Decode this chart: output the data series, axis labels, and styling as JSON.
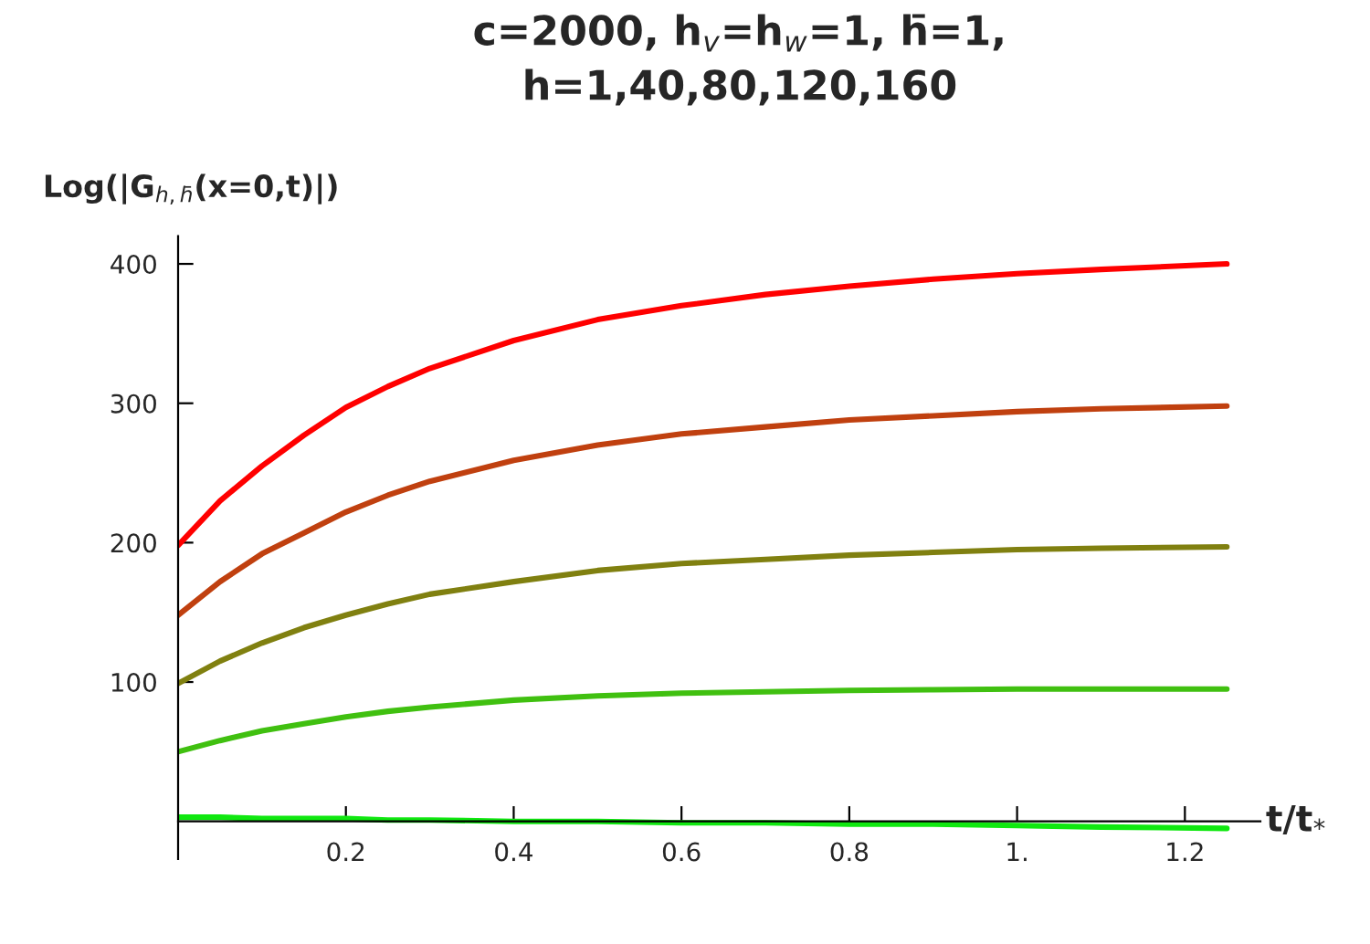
{
  "chart_data": {
    "type": "line",
    "title": "c=2000, h$_{v}$=h$_{w}$=1, h̄=1,\nh=1,40,80,120,160",
    "xlabel": "t/t$_{*}$",
    "ylabel": "Log(|G$_{h,h̄}$(x=0,t)|)",
    "x": [
      0,
      0.05,
      0.1,
      0.15,
      0.2,
      0.25,
      0.3,
      0.4,
      0.5,
      0.6,
      0.7,
      0.8,
      0.9,
      1.0,
      1.1,
      1.25
    ],
    "series": [
      {
        "color": "#ff0000",
        "values": [
          198,
          230,
          255,
          277,
          297,
          312,
          325,
          345,
          360,
          370,
          378,
          384,
          389,
          393,
          396,
          400
        ]
      },
      {
        "color": "#c0400f",
        "values": [
          148,
          172,
          192,
          207,
          222,
          234,
          244,
          259,
          270,
          278,
          283,
          288,
          291,
          294,
          296,
          298
        ]
      },
      {
        "color": "#808010",
        "values": [
          99,
          115,
          128,
          139,
          148,
          156,
          163,
          172,
          180,
          185,
          188,
          191,
          193,
          195,
          196,
          197
        ]
      },
      {
        "color": "#40c010",
        "values": [
          50,
          58,
          65,
          70,
          75,
          79,
          82,
          87,
          90,
          92,
          93,
          94,
          94.5,
          95,
          95,
          95
        ]
      },
      {
        "color": "#10e810",
        "values": [
          3,
          3,
          2,
          2,
          2,
          1,
          1,
          0,
          0,
          -1,
          -1,
          -2,
          -2,
          -3,
          -4,
          -5
        ]
      }
    ],
    "xlim": [
      0,
      1.29
    ],
    "ylim": [
      -27,
      420
    ],
    "xticks": [
      0.2,
      0.4,
      0.6,
      0.8,
      {
        "value": 1.0,
        "label": "1."
      },
      1.2
    ],
    "yticks": [
      100,
      200,
      300,
      400
    ],
    "grid": false,
    "legend": false,
    "marker": "none",
    "line_style": "solid"
  }
}
